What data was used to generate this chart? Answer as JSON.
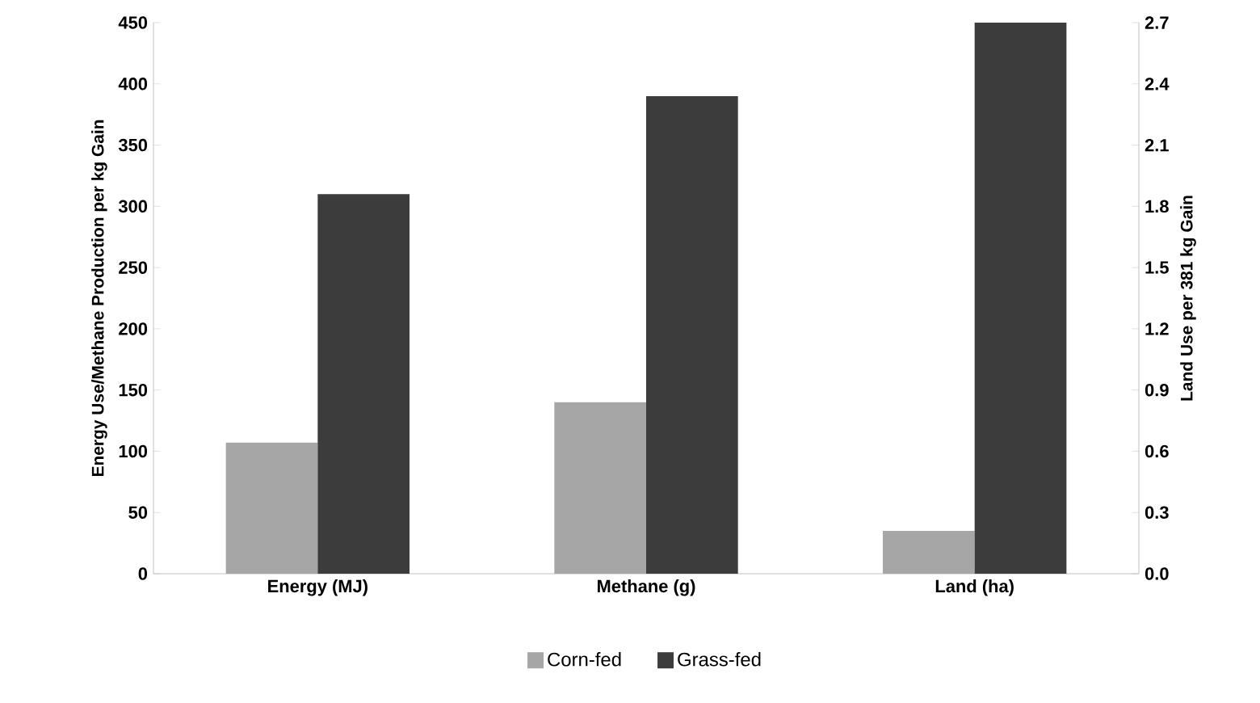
{
  "chart_data": {
    "type": "bar",
    "categories": [
      "Energy (MJ)",
      "Methane (g)",
      "Land (ha)"
    ],
    "ylabel": "Energy Use/Methane Production per kg Gain",
    "y2label": "Land Use per 381 kg Gain",
    "series": [
      {
        "name": "Corn-fed",
        "color": "#a6a6a6",
        "values": [
          107,
          140,
          null
        ]
      },
      {
        "name": "Grass-fed",
        "color": "#3c3c3c",
        "values": [
          310,
          390,
          null
        ]
      },
      {
        "color": "#a6a6a6",
        "values": [
          null,
          null,
          0.21
        ],
        "axis": "y2"
      },
      {
        "color": "#3c3c3c",
        "values": [
          null,
          null,
          2.7
        ],
        "axis": "y2"
      }
    ],
    "ylim": [
      0,
      450
    ],
    "yticks": [
      0,
      50,
      100,
      150,
      200,
      250,
      300,
      350,
      400,
      450
    ],
    "y2lim": [
      0,
      2.7
    ],
    "y2ticks": [
      {
        "value": 0,
        "label": "0.0"
      },
      0.3,
      0.6,
      0.9,
      1.2,
      1.5,
      1.8,
      2.1,
      2.4,
      2.7
    ],
    "legend": "bottom"
  }
}
